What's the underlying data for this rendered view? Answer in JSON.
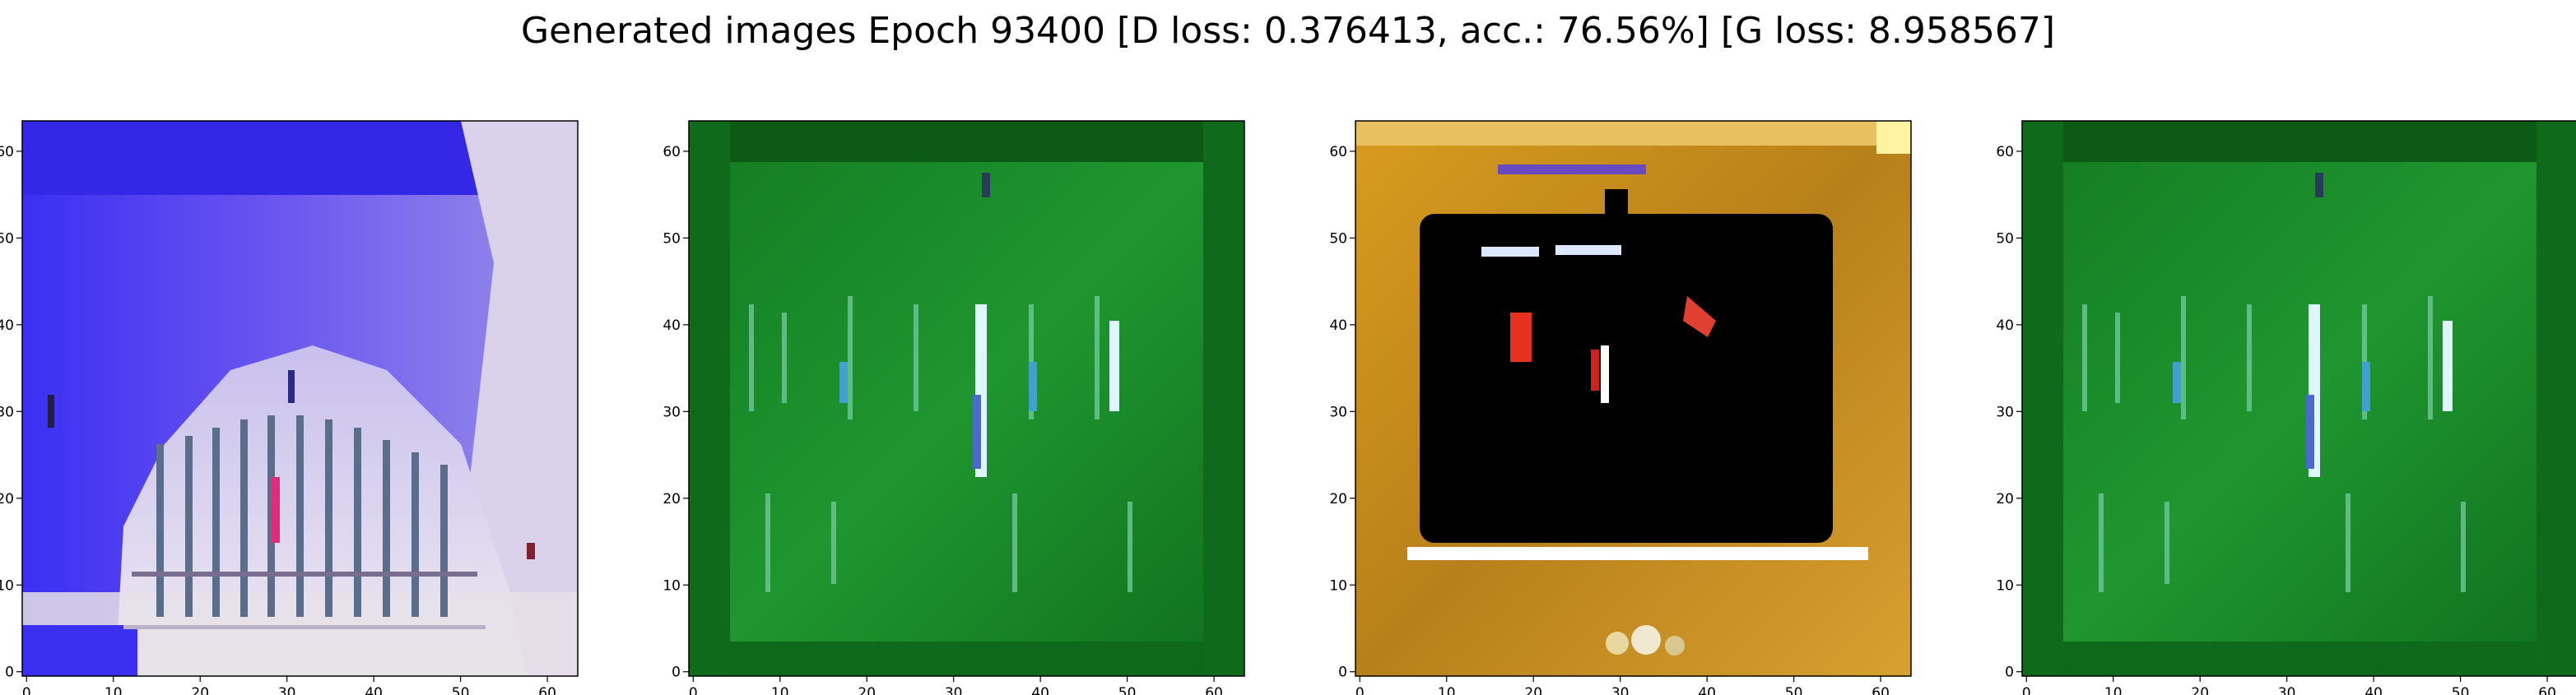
{
  "title": "Generated images Epoch 93400 [D loss: 0.376413, acc.: 76.56%] [G loss: 8.958567]",
  "chart_data": [
    {
      "type": "image",
      "panel": 1,
      "x_ticks": [
        "0",
        "10",
        "20",
        "30",
        "40",
        "50",
        "60"
      ],
      "y_ticks": [
        "0",
        "10",
        "20",
        "30",
        "40",
        "50",
        "60"
      ],
      "xlim": [
        -0.5,
        63.5
      ],
      "ylim": [
        63.5,
        -0.5
      ],
      "dominant_colors": [
        "#3a2ef0",
        "#e8e0ea",
        "#5a7090"
      ]
    },
    {
      "type": "image",
      "panel": 2,
      "x_ticks": [
        "0",
        "10",
        "20",
        "30",
        "40",
        "50",
        "60"
      ],
      "y_ticks": [
        "0",
        "10",
        "20",
        "30",
        "40",
        "50",
        "60"
      ],
      "xlim": [
        -0.5,
        63.5
      ],
      "ylim": [
        63.5,
        -0.5
      ],
      "dominant_colors": [
        "#1a8a2a",
        "#0f6a1c",
        "#7ad0a0"
      ]
    },
    {
      "type": "image",
      "panel": 3,
      "x_ticks": [
        "0",
        "10",
        "20",
        "30",
        "40",
        "50",
        "60"
      ],
      "y_ticks": [
        "0",
        "10",
        "20",
        "30",
        "40",
        "50",
        "60"
      ],
      "xlim": [
        -0.5,
        63.5
      ],
      "ylim": [
        63.5,
        -0.5
      ],
      "dominant_colors": [
        "#c8901a",
        "#000000",
        "#f0e0a0"
      ]
    },
    {
      "type": "image",
      "panel": 4,
      "x_ticks": [
        "0",
        "10",
        "20",
        "30",
        "40",
        "50",
        "60"
      ],
      "y_ticks": [
        "0",
        "10",
        "20",
        "30",
        "40",
        "50",
        "60"
      ],
      "xlim": [
        -0.5,
        63.5
      ],
      "ylim": [
        63.5,
        -0.5
      ],
      "dominant_colors": [
        "#1a8a2a",
        "#0f6a1c",
        "#7ad0a0"
      ]
    }
  ]
}
